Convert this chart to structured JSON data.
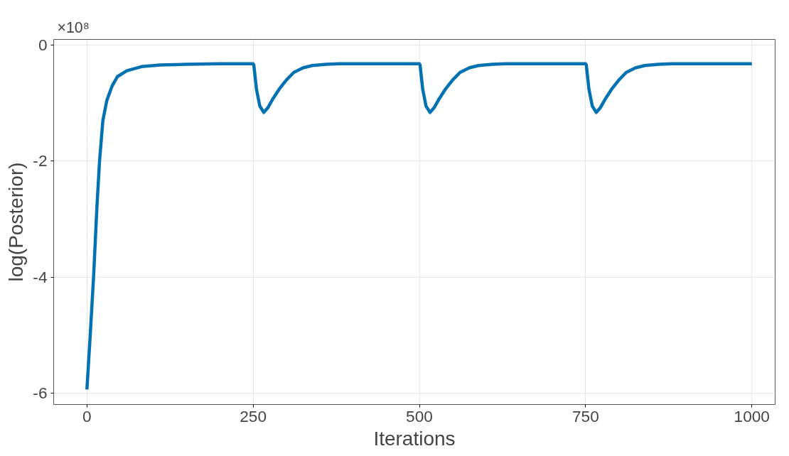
{
  "chart_data": {
    "type": "line",
    "xlabel": "Iterations",
    "ylabel": "log(Posterior)",
    "annotations": [
      "×10⁸"
    ],
    "x": [
      0,
      5,
      10,
      15,
      19,
      24,
      30,
      38,
      46,
      60,
      82,
      110,
      150,
      200,
      250,
      251,
      255,
      260,
      266,
      272,
      280,
      289,
      300,
      311,
      325,
      339,
      360,
      380,
      420,
      460,
      500,
      501,
      505,
      510,
      516,
      522,
      530,
      539,
      550,
      561,
      575,
      589,
      610,
      630,
      670,
      710,
      750,
      751,
      755,
      760,
      766,
      772,
      780,
      789,
      800,
      811,
      825,
      839,
      860,
      880,
      920,
      960,
      1000
    ],
    "series": [
      {
        "color": "#0072b2",
        "values": [
          -5.94,
          -5.0,
          -4.0,
          -2.8,
          -2.0,
          -1.3,
          -0.95,
          -0.7,
          -0.54,
          -0.44,
          -0.37,
          -0.34,
          -0.33,
          -0.32,
          -0.32,
          -0.34,
          -0.76,
          -1.05,
          -1.16,
          -1.08,
          -0.92,
          -0.76,
          -0.6,
          -0.47,
          -0.39,
          -0.35,
          -0.33,
          -0.32,
          -0.32,
          -0.32,
          -0.32,
          -0.34,
          -0.76,
          -1.05,
          -1.16,
          -1.08,
          -0.92,
          -0.76,
          -0.6,
          -0.47,
          -0.39,
          -0.35,
          -0.33,
          -0.32,
          -0.32,
          -0.32,
          -0.32,
          -0.34,
          -0.76,
          -1.05,
          -1.16,
          -1.08,
          -0.92,
          -0.76,
          -0.6,
          -0.47,
          -0.39,
          -0.35,
          -0.33,
          -0.32,
          -0.32,
          -0.32,
          -0.32
        ]
      }
    ],
    "xlim": [
      -50,
      1035
    ],
    "ylim": [
      -6.2,
      0.1
    ],
    "xticks": [
      0,
      250,
      500,
      750,
      1000
    ],
    "yticks": [
      -6,
      -4,
      -2,
      0
    ],
    "grid": true,
    "marker": "none",
    "line_style": "solid"
  }
}
